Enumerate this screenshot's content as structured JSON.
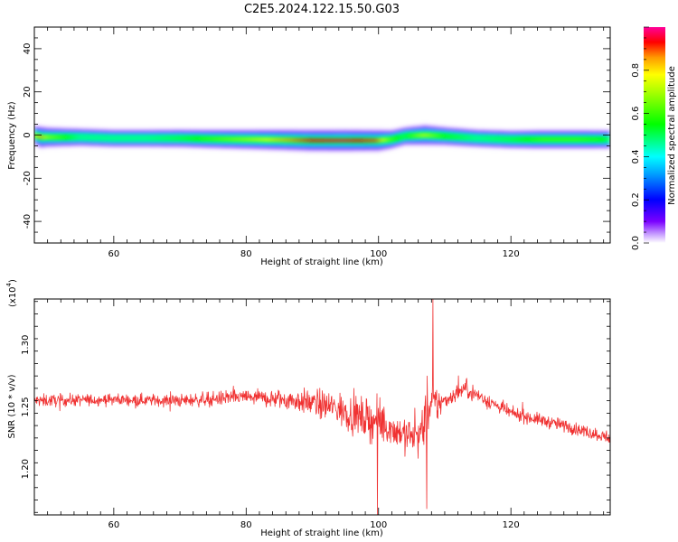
{
  "title": "C2E5.2024.122.15.50.G03",
  "colors": {
    "snr_line": "#f03232",
    "axis": "#000000"
  },
  "chart_data": [
    {
      "type": "heatmap",
      "title": "C2E5.2024.122.15.50.G03",
      "xlabel": "Height of straight line (km)",
      "ylabel": "Frequency (Hz)",
      "xlim": [
        48,
        135
      ],
      "ylim": [
        -50,
        50
      ],
      "xticks": [
        60,
        80,
        100,
        120
      ],
      "yticks": [
        40,
        20,
        0,
        -20,
        -40
      ],
      "colorbar": {
        "label": "Normalized spectral amplitude",
        "range": [
          0,
          1
        ],
        "ticks": [
          0.0,
          0.2,
          0.4,
          0.6,
          0.8
        ],
        "colormap": "rainbow (magenta at 1, red, yellow, green, cyan, blue, violet at 0)"
      },
      "ridge": [
        {
          "x": 48,
          "freq": 0.0,
          "amp": 0.6
        },
        {
          "x": 49,
          "freq": -1.0,
          "amp": 0.9
        },
        {
          "x": 50,
          "freq": -1.0,
          "amp": 0.7
        },
        {
          "x": 55,
          "freq": -1.0,
          "amp": 0.45
        },
        {
          "x": 60,
          "freq": -1.5,
          "amp": 0.45
        },
        {
          "x": 65,
          "freq": -1.5,
          "amp": 0.45
        },
        {
          "x": 70,
          "freq": -1.5,
          "amp": 0.5
        },
        {
          "x": 75,
          "freq": -1.8,
          "amp": 0.6
        },
        {
          "x": 80,
          "freq": -2.0,
          "amp": 0.7
        },
        {
          "x": 85,
          "freq": -2.2,
          "amp": 0.82
        },
        {
          "x": 90,
          "freq": -2.5,
          "amp": 0.93
        },
        {
          "x": 95,
          "freq": -2.5,
          "amp": 0.95
        },
        {
          "x": 100,
          "freq": -2.5,
          "amp": 0.9
        },
        {
          "x": 102,
          "freq": -2.0,
          "amp": 0.6
        },
        {
          "x": 104,
          "freq": -0.5,
          "amp": 0.5
        },
        {
          "x": 107,
          "freq": 0.0,
          "amp": 0.75
        },
        {
          "x": 110,
          "freq": -0.5,
          "amp": 0.55
        },
        {
          "x": 115,
          "freq": -1.5,
          "amp": 0.45
        },
        {
          "x": 120,
          "freq": -2.0,
          "amp": 0.5
        },
        {
          "x": 125,
          "freq": -2.0,
          "amp": 0.6
        },
        {
          "x": 130,
          "freq": -2.0,
          "amp": 0.6
        },
        {
          "x": 134,
          "freq": -2.0,
          "amp": 0.55
        }
      ]
    },
    {
      "type": "line",
      "xlabel": "Height of straight line (km)",
      "ylabel": "SNR (10 * v/v)",
      "exponent_label": "(x10",
      "exponent_power": "4",
      "exponent_close": ")",
      "xlim": [
        48,
        135
      ],
      "ylim": [
        11.63,
        13.37
      ],
      "xticks": [
        60,
        80,
        100,
        120
      ],
      "yticks": [
        13.0,
        12.5,
        12.0
      ],
      "ytick_labels": [
        "1.30",
        "1.25",
        "1.20"
      ],
      "series": [
        {
          "values_profile": [
            {
              "x": 48,
              "mean": 12.55,
              "noise": 0.05
            },
            {
              "x": 60,
              "mean": 12.56,
              "noise": 0.045
            },
            {
              "x": 70,
              "mean": 12.55,
              "noise": 0.05
            },
            {
              "x": 80,
              "mean": 12.58,
              "noise": 0.06
            },
            {
              "x": 88,
              "mean": 12.55,
              "noise": 0.09
            },
            {
              "x": 93,
              "mean": 12.5,
              "noise": 0.13
            },
            {
              "x": 97,
              "mean": 12.42,
              "noise": 0.15
            },
            {
              "x": 100,
              "mean": 12.38,
              "noise": 0.16
            },
            {
              "x": 103,
              "mean": 12.3,
              "noise": 0.14
            },
            {
              "x": 106,
              "mean": 12.25,
              "noise": 0.16
            },
            {
              "x": 108,
              "mean": 12.5,
              "noise": 0.22
            },
            {
              "x": 110,
              "mean": 12.55,
              "noise": 0.06
            },
            {
              "x": 113,
              "mean": 12.65,
              "noise": 0.07
            },
            {
              "x": 120,
              "mean": 12.45,
              "noise": 0.05
            },
            {
              "x": 128,
              "mean": 12.35,
              "noise": 0.05
            },
            {
              "x": 135,
              "mean": 12.25,
              "noise": 0.05
            }
          ],
          "notable_points": [
            {
              "x": 108.2,
              "y": 13.37
            },
            {
              "x": 99.8,
              "y": 11.63
            },
            {
              "x": 107.3,
              "y": 11.68
            }
          ]
        }
      ]
    }
  ]
}
